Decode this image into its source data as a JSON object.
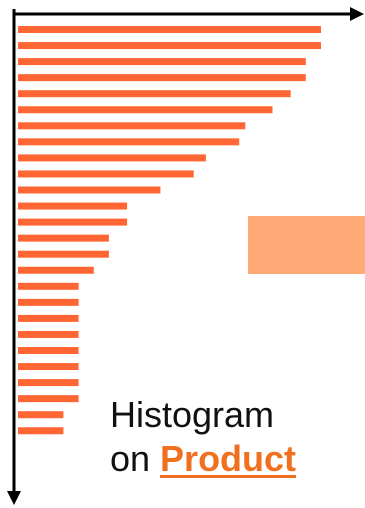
{
  "caption": {
    "line1": "Histogram",
    "line2_prefix": "on ",
    "line2_emphasis": "Product"
  },
  "colors": {
    "bar": "#FF6633",
    "swatch": "#FFAA77",
    "emphasis": "#F07020",
    "axis": "#000000"
  },
  "chart_data": {
    "type": "bar",
    "orientation": "horizontal",
    "title": "",
    "xlabel": "",
    "ylabel": "",
    "sorted": "descending",
    "values": [
      100,
      100,
      95,
      95,
      90,
      84,
      75,
      73,
      62,
      58,
      47,
      36,
      36,
      30,
      30,
      25,
      20,
      20,
      20,
      20,
      20,
      20,
      20,
      20,
      15,
      15
    ],
    "xlim": [
      0,
      100
    ],
    "grid": false,
    "legend": "none"
  }
}
